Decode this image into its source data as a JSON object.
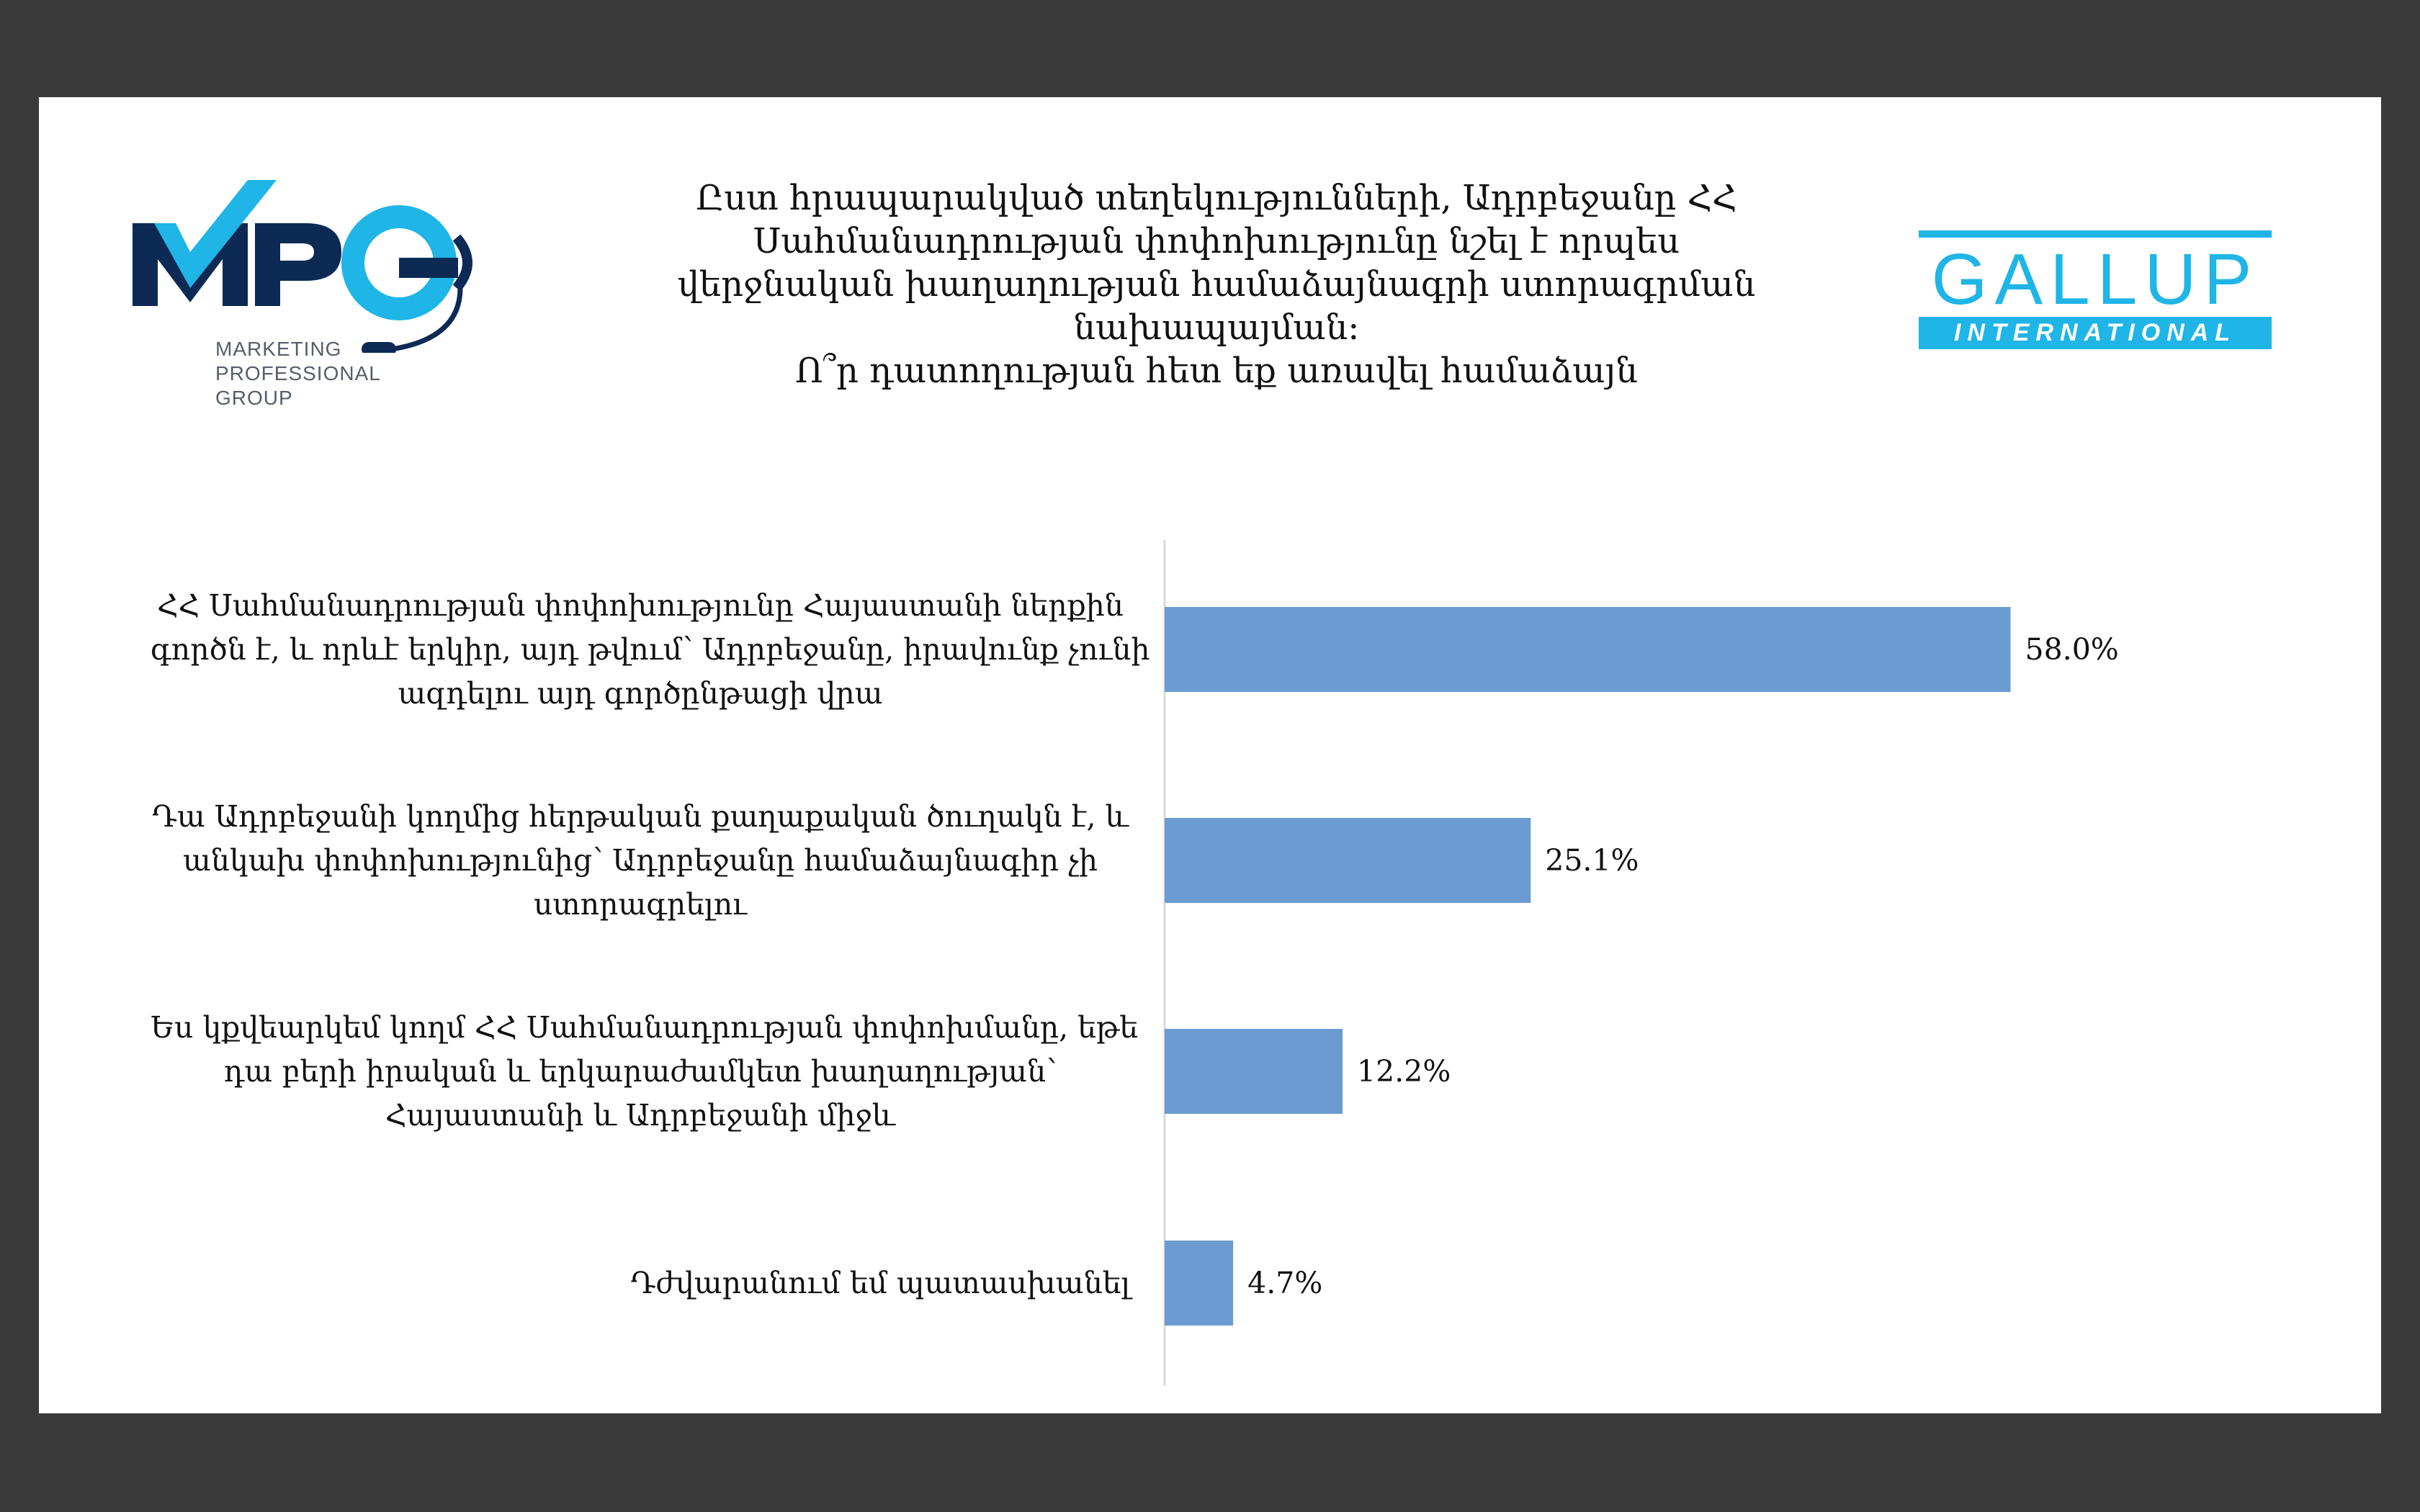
{
  "title": {
    "lines": [
      "Ըստ հրապարակված տեղեկությունների, Ադրբեջանը ՀՀ",
      "Սահմանադրության փոփոխությունը նշել է որպես",
      "վերջնական խաղաղության համաձայնագրի ստորագրման",
      "նախապայման:",
      "Ո՞ր դատողության հետ եք առավել համաձայն"
    ]
  },
  "logos": {
    "mpg": {
      "letters": "MPG",
      "subtitle_lines": [
        "MARKETING",
        "PROFESSIONAL",
        "GROUP"
      ],
      "colors": {
        "dark": "#0d2a55",
        "light": "#1fb5e6"
      }
    },
    "gallup": {
      "word": "GALLUP",
      "sub": "INTERNATIONAL",
      "color": "#1fb5e6"
    }
  },
  "chart_data": {
    "type": "bar",
    "orientation": "horizontal",
    "categories": [
      [
        "ՀՀ Սահմանադրության փոփոխությունը Հայաստանի ներքին",
        "գործն է, և որևէ երկիր, այդ թվում՝ Ադրբեջանը, իրավունք չունի",
        "ազդելու այդ գործընթացի վրա"
      ],
      [
        "Դա Ադրբեջանի կողմից հերթական քաղաքական ծուղակն է, և",
        "անկախ փոփոխությունից՝ Ադրբեջանը համաձայնագիր չի",
        "ստորագրելու"
      ],
      [
        "Ես կքվեարկեմ կողմ ՀՀ Սահմանադրության փոփոխմանը, եթե",
        "դա բերի իրական և երկարաժամկետ խաղաղության՝",
        "Հայաստանի և Ադրբեջանի միջև"
      ],
      [
        "Դժվարանում եմ պատասխանել"
      ]
    ],
    "values": [
      58.0,
      25.1,
      12.2,
      4.7
    ],
    "value_labels": [
      "58.0%",
      "25.1%",
      "12.2%",
      "4.7%"
    ],
    "xlim": [
      0,
      100
    ],
    "bar_color": "#6a9bd1",
    "grid": false,
    "legend": "none"
  }
}
